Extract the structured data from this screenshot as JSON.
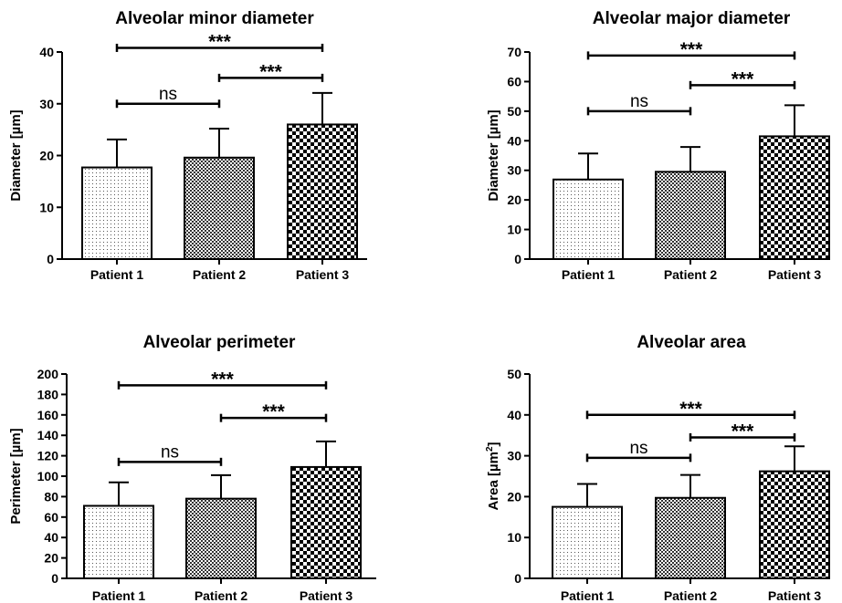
{
  "figure": {
    "chart_data": [
      {
        "type": "bar",
        "title": "Alveolar minor diameter",
        "ylabel": "Diameter [µm]",
        "ylabel_unit_superscript": "",
        "categories": [
          "Patient 1",
          "Patient 2",
          "Patient 3"
        ],
        "values": [
          17.7,
          19.6,
          26.0
        ],
        "errors": [
          5.4,
          5.6,
          6.1
        ],
        "ylim": [
          0,
          40
        ],
        "yticks": [
          0,
          10,
          20,
          30,
          40
        ],
        "patterns": [
          "dots-sparse",
          "checker-fine",
          "checker-coarse"
        ],
        "comparisons": [
          {
            "from": 0,
            "to": 2,
            "y": 40.8,
            "label": "***"
          },
          {
            "from": 1,
            "to": 2,
            "y": 35.0,
            "label": "***"
          },
          {
            "from": 0,
            "to": 1,
            "y": 30.0,
            "label": "ns"
          }
        ]
      },
      {
        "type": "bar",
        "title": "Alveolar major diameter",
        "ylabel": "Diameter [µm]",
        "ylabel_unit_superscript": "",
        "categories": [
          "Patient 1",
          "Patient 2",
          "Patient 3"
        ],
        "values": [
          26.9,
          29.5,
          41.5
        ],
        "errors": [
          8.8,
          8.4,
          10.5
        ],
        "ylim": [
          0,
          70
        ],
        "yticks": [
          0,
          10,
          20,
          30,
          40,
          50,
          60,
          70
        ],
        "patterns": [
          "dots-sparse",
          "checker-fine",
          "checker-coarse"
        ],
        "comparisons": [
          {
            "from": 0,
            "to": 2,
            "y": 68.8,
            "label": "***"
          },
          {
            "from": 1,
            "to": 2,
            "y": 58.8,
            "label": "***"
          },
          {
            "from": 0,
            "to": 1,
            "y": 50.0,
            "label": "ns"
          }
        ]
      },
      {
        "type": "bar",
        "title": "Alveolar perimeter",
        "ylabel": "Perimeter [µm]",
        "ylabel_unit_superscript": "",
        "categories": [
          "Patient 1",
          "Patient 2",
          "Patient 3"
        ],
        "values": [
          71,
          78,
          109
        ],
        "errors": [
          23,
          23,
          25
        ],
        "ylim": [
          0,
          200
        ],
        "yticks": [
          0,
          20,
          40,
          60,
          80,
          100,
          120,
          140,
          160,
          180,
          200
        ],
        "patterns": [
          "dots-sparse",
          "checker-fine",
          "checker-coarse"
        ],
        "comparisons": [
          {
            "from": 0,
            "to": 2,
            "y": 189,
            "label": "***"
          },
          {
            "from": 1,
            "to": 2,
            "y": 157,
            "label": "***"
          },
          {
            "from": 0,
            "to": 1,
            "y": 114,
            "label": "ns"
          }
        ]
      },
      {
        "type": "bar",
        "title": "Alveolar area",
        "ylabel": "Area [µm",
        "ylabel_unit_superscript": "2",
        "ylabel_suffix": "]",
        "categories": [
          "Patient 1",
          "Patient 2",
          "Patient 3"
        ],
        "values": [
          17.5,
          19.7,
          26.2
        ],
        "errors": [
          5.6,
          5.6,
          6.1
        ],
        "ylim": [
          0,
          50
        ],
        "yticks": [
          0,
          10,
          20,
          30,
          40,
          50
        ],
        "patterns": [
          "dots-sparse",
          "checker-fine",
          "checker-coarse"
        ],
        "comparisons": [
          {
            "from": 0,
            "to": 2,
            "y": 40,
            "label": "***"
          },
          {
            "from": 1,
            "to": 2,
            "y": 34.5,
            "label": "***"
          },
          {
            "from": 0,
            "to": 1,
            "y": 29.5,
            "label": "ns"
          }
        ]
      }
    ]
  }
}
